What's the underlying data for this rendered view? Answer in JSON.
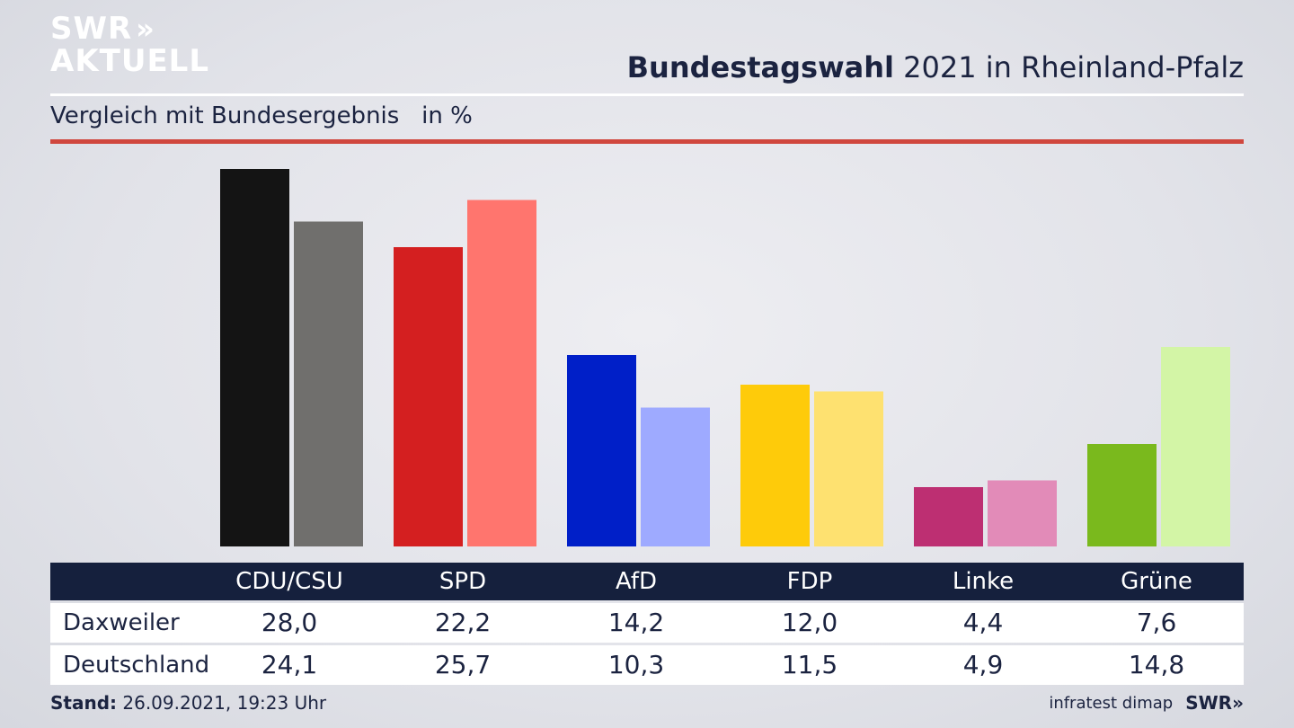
{
  "logo": {
    "line1": "SWR",
    "line1_arrows": "»",
    "line2": "AKTUELL"
  },
  "header": {
    "title_bold": "Bundestagswahl",
    "title_rest": " 2021 in Rheinland-Pfalz"
  },
  "subtitle": "Vergleich mit Bundesergebnis   in %",
  "colors": {
    "cdu_local": "#141414",
    "cdu_national": "#706f6d",
    "spd_local": "#d41f20",
    "spd_national": "#ff756e",
    "afd_local": "#001fc8",
    "afd_national": "#9eaaff",
    "fdp_local": "#fecb0a",
    "fdp_national": "#fee170",
    "linke_local": "#bd2f72",
    "linke_national": "#e28bb8",
    "gruene_local": "#7ab91d",
    "gruene_national": "#d3f5a6",
    "table_header": "#15203d",
    "accent_rule": "#d0473e"
  },
  "chart_data": {
    "type": "bar",
    "categories": [
      "CDU/CSU",
      "SPD",
      "AfD",
      "FDP",
      "Linke",
      "Grüne"
    ],
    "series": [
      {
        "name": "Daxweiler",
        "values": [
          28.0,
          22.2,
          14.2,
          12.0,
          4.4,
          7.6
        ],
        "colors": [
          "#141414",
          "#d41f20",
          "#001fc8",
          "#fecb0a",
          "#bd2f72",
          "#7ab91d"
        ]
      },
      {
        "name": "Deutschland",
        "values": [
          24.1,
          25.7,
          10.3,
          11.5,
          4.9,
          14.8
        ],
        "colors": [
          "#706f6d",
          "#ff756e",
          "#9eaaff",
          "#fee170",
          "#e28bb8",
          "#d3f5a6"
        ]
      }
    ],
    "ylim": [
      0,
      28
    ],
    "grid": false,
    "legend": "none"
  },
  "table": {
    "headers": [
      "CDU/CSU",
      "SPD",
      "AfD",
      "FDP",
      "Linke",
      "Grüne"
    ],
    "rows": [
      {
        "label": "Daxweiler",
        "values": [
          "28,0",
          "22,2",
          "14,2",
          "12,0",
          "4,4",
          "7,6"
        ]
      },
      {
        "label": "Deutschland",
        "values": [
          "24,1",
          "25,7",
          "10,3",
          "11,5",
          "4,9",
          "14,8"
        ]
      }
    ]
  },
  "footer": {
    "stand_label": "Stand:",
    "stand_value": " 26.09.2021, 19:23 Uhr",
    "source": "infratest dimap",
    "brand": "SWR»"
  }
}
